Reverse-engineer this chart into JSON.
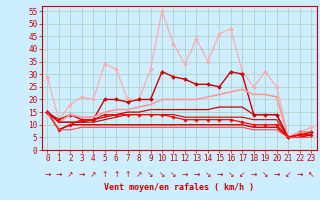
{
  "background_color": "#cceeff",
  "grid_color": "#aaccbb",
  "xlabel": "Vent moyen/en rafales ( km/h )",
  "xlabel_color": "#cc0000",
  "tick_color": "#cc0000",
  "xlim": [
    -0.5,
    23.5
  ],
  "ylim": [
    0,
    57
  ],
  "yticks": [
    0,
    5,
    10,
    15,
    20,
    25,
    30,
    35,
    40,
    45,
    50,
    55
  ],
  "xticks": [
    0,
    1,
    2,
    3,
    4,
    5,
    6,
    7,
    8,
    9,
    10,
    11,
    12,
    13,
    14,
    15,
    16,
    17,
    18,
    19,
    20,
    21,
    22,
    23
  ],
  "lines": [
    {
      "y": [
        29,
        12,
        18,
        21,
        20,
        34,
        32,
        20,
        20,
        32,
        55,
        42,
        34,
        44,
        35,
        46,
        48,
        31,
        25,
        31,
        25,
        5,
        7,
        9
      ],
      "color": "#ffaaaa",
      "lw": 0.9,
      "marker": "D",
      "ms": 2.0
    },
    {
      "y": [
        15,
        12,
        14,
        12,
        12,
        20,
        20,
        19,
        20,
        20,
        31,
        29,
        28,
        26,
        26,
        25,
        31,
        30,
        14,
        14,
        14,
        5,
        7,
        7
      ],
      "color": "#cc0000",
      "lw": 1.0,
      "marker": "D",
      "ms": 2.0
    },
    {
      "y": [
        15,
        11,
        14,
        13,
        13,
        15,
        16,
        16,
        17,
        18,
        20,
        20,
        20,
        20,
        21,
        22,
        23,
        24,
        22,
        22,
        21,
        5,
        7,
        7
      ],
      "color": "#ff9999",
      "lw": 1.2,
      "marker": null,
      "ms": 0
    },
    {
      "y": [
        15,
        11,
        11,
        11,
        12,
        13,
        14,
        15,
        15,
        16,
        16,
        16,
        16,
        16,
        16,
        17,
        17,
        17,
        14,
        14,
        14,
        5,
        6,
        7
      ],
      "color": "#cc0000",
      "lw": 0.9,
      "marker": null,
      "ms": 0
    },
    {
      "y": [
        15,
        11,
        11,
        11,
        11,
        12,
        13,
        14,
        14,
        14,
        14,
        14,
        13,
        13,
        13,
        13,
        13,
        13,
        12,
        12,
        12,
        5,
        6,
        6
      ],
      "color": "#cc0000",
      "lw": 0.8,
      "marker": null,
      "ms": 0
    },
    {
      "y": [
        15,
        8,
        10,
        12,
        12,
        14,
        14,
        14,
        14,
        14,
        14,
        13,
        12,
        12,
        12,
        12,
        12,
        11,
        10,
        10,
        10,
        5,
        6,
        6
      ],
      "color": "#ff0000",
      "lw": 0.9,
      "marker": "D",
      "ms": 1.8
    },
    {
      "y": [
        15,
        8,
        10,
        10,
        10,
        10,
        10,
        10,
        10,
        10,
        10,
        10,
        10,
        10,
        10,
        10,
        10,
        10,
        9,
        9,
        9,
        5,
        5,
        6
      ],
      "color": "#cc0000",
      "lw": 1.0,
      "marker": null,
      "ms": 0
    },
    {
      "y": [
        15,
        8,
        8,
        9,
        9,
        9,
        9,
        9,
        9,
        9,
        9,
        9,
        9,
        9,
        9,
        9,
        9,
        9,
        8,
        8,
        8,
        5,
        5,
        5
      ],
      "color": "#ff4444",
      "lw": 0.8,
      "marker": null,
      "ms": 0
    }
  ],
  "arrows": [
    "→",
    "→",
    "↗",
    "→",
    "↗",
    "↑",
    "↑",
    "↑",
    "↗",
    "↘",
    "↘",
    "↘",
    "→",
    "→",
    "↘",
    "→",
    "↘",
    "↙",
    "→",
    "↘",
    "→",
    "↙",
    "→",
    "↖"
  ],
  "tick_fontsize": 5.5,
  "arrow_fontsize": 5.5
}
